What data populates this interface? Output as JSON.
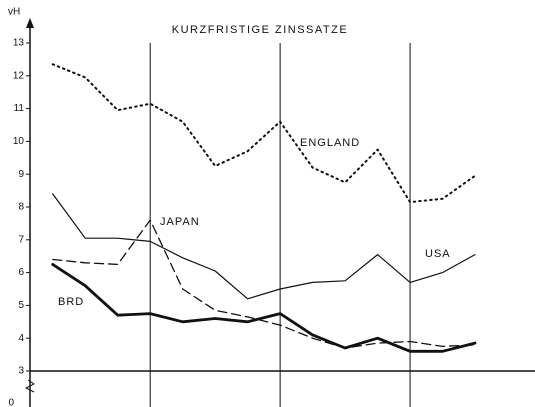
{
  "chart_data": {
    "type": "line",
    "title": "KURZFRISTIGE ZINSSATZE",
    "y_label": "vH",
    "y_break_label": "0",
    "x": [
      1,
      2,
      3,
      4,
      5,
      6,
      7,
      8,
      9,
      10,
      11,
      12,
      13,
      14
    ],
    "xlim": [
      0.3,
      15.6
    ],
    "xticks": [
      4,
      8,
      12
    ],
    "ylim": [
      3,
      13
    ],
    "yticks": [
      3,
      4,
      5,
      6,
      7,
      8,
      9,
      10,
      11,
      12,
      13
    ],
    "series": [
      {
        "name": "ENGLAND",
        "color": "#111111",
        "style": "dotted",
        "linewidth": 2,
        "values": [
          12.35,
          11.95,
          10.95,
          11.15,
          10.6,
          9.25,
          9.7,
          10.6,
          9.2,
          8.75,
          9.75,
          8.15,
          8.25,
          8.95
        ]
      },
      {
        "name": "JAPAN",
        "color": "#111111",
        "style": "dashed",
        "linewidth": 1.3,
        "values": [
          6.4,
          6.3,
          6.25,
          7.6,
          5.5,
          4.85,
          4.65,
          4.4,
          4.0,
          3.7,
          3.85,
          3.9,
          3.75,
          3.8
        ]
      },
      {
        "name": "USA",
        "color": "#111111",
        "style": "solid",
        "linewidth": 1.2,
        "values": [
          8.4,
          7.05,
          7.05,
          6.95,
          6.45,
          6.05,
          5.2,
          5.5,
          5.7,
          5.75,
          6.55,
          5.7,
          6.0,
          6.55
        ]
      },
      {
        "name": "BRD",
        "color": "#111111",
        "style": "solid",
        "linewidth": 2.8,
        "values": [
          6.25,
          5.6,
          4.7,
          4.75,
          4.5,
          4.6,
          4.5,
          4.75,
          4.1,
          3.7,
          4.0,
          3.6,
          3.6,
          3.85
        ]
      }
    ]
  }
}
